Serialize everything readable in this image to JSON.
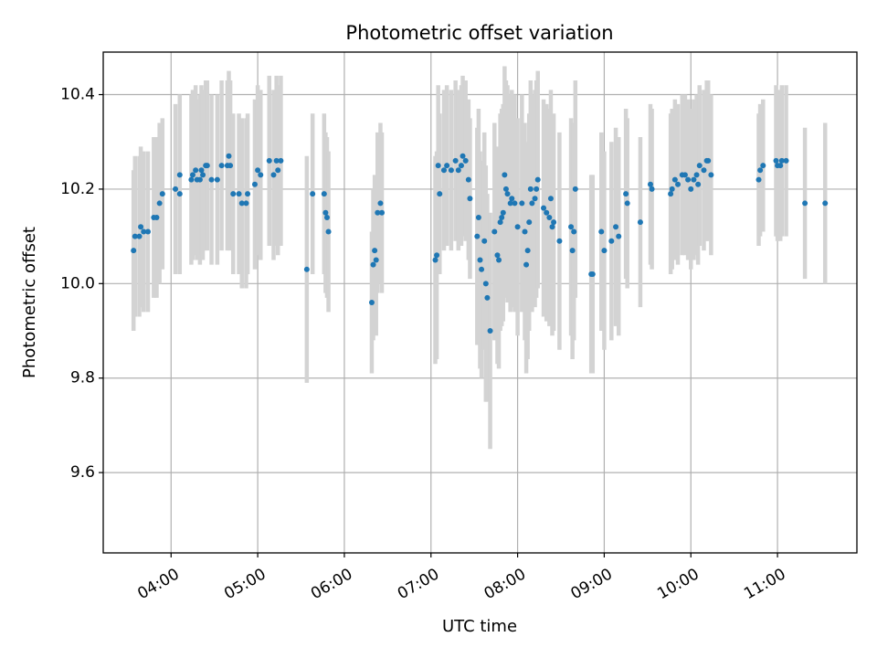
{
  "chart_data": {
    "type": "scatter",
    "title": "Photometric offset variation",
    "xlabel": "UTC time",
    "ylabel": "Photometric offset",
    "x_unit": "UTC hours",
    "xlim": [
      "03:13",
      "11:55"
    ],
    "ylim": [
      9.43,
      10.49
    ],
    "x_ticks": [
      "04:00",
      "05:00",
      "06:00",
      "07:00",
      "08:00",
      "09:00",
      "10:00",
      "11:00"
    ],
    "y_ticks": [
      "9.6",
      "9.8",
      "10.0",
      "10.2",
      "10.4"
    ],
    "grid": true,
    "colors": {
      "point": "#1f77b4",
      "errorbar": "#d3d3d3",
      "grid": "#b0b0b0",
      "axes": "#000000"
    },
    "series": [
      {
        "points": [
          [
            "03:34",
            10.07,
            0.17
          ],
          [
            "03:35",
            10.1,
            0.17
          ],
          [
            "03:38",
            10.1,
            0.17
          ],
          [
            "03:39",
            10.12,
            0.17
          ],
          [
            "03:41",
            10.11,
            0.17
          ],
          [
            "03:44",
            10.11,
            0.17
          ],
          [
            "03:48",
            10.14,
            0.17
          ],
          [
            "03:50",
            10.14,
            0.17
          ],
          [
            "03:52",
            10.17,
            0.17
          ],
          [
            "03:54",
            10.19,
            0.16
          ],
          [
            "04:03",
            10.2,
            0.18
          ],
          [
            "04:06",
            10.23,
            0.17
          ],
          [
            "04:06",
            10.19,
            0.17
          ],
          [
            "04:14",
            10.22,
            0.18
          ],
          [
            "04:15",
            10.23,
            0.18
          ],
          [
            "04:17",
            10.24,
            0.18
          ],
          [
            "04:18",
            10.22,
            0.17
          ],
          [
            "04:20",
            10.22,
            0.18
          ],
          [
            "04:21",
            10.24,
            0.18
          ],
          [
            "04:22",
            10.23,
            0.18
          ],
          [
            "04:24",
            10.25,
            0.18
          ],
          [
            "04:25",
            10.25,
            0.18
          ],
          [
            "04:28",
            10.22,
            0.18
          ],
          [
            "04:32",
            10.22,
            0.18
          ],
          [
            "04:35",
            10.25,
            0.18
          ],
          [
            "04:39",
            10.25,
            0.18
          ],
          [
            "04:40",
            10.27,
            0.18
          ],
          [
            "04:41",
            10.25,
            0.18
          ],
          [
            "04:43",
            10.19,
            0.17
          ],
          [
            "04:47",
            10.19,
            0.17
          ],
          [
            "04:49",
            10.17,
            0.18
          ],
          [
            "04:52",
            10.17,
            0.18
          ],
          [
            "04:53",
            10.19,
            0.17
          ],
          [
            "04:58",
            10.21,
            0.18
          ],
          [
            "05:00",
            10.24,
            0.18
          ],
          [
            "05:02",
            10.23,
            0.18
          ],
          [
            "05:08",
            10.26,
            0.18
          ],
          [
            "05:11",
            10.23,
            0.18
          ],
          [
            "05:13",
            10.26,
            0.18
          ],
          [
            "05:14",
            10.24,
            0.18
          ],
          [
            "05:16",
            10.26,
            0.18
          ],
          [
            "05:38",
            10.19,
            0.17
          ],
          [
            "05:34",
            10.03,
            0.24
          ],
          [
            "05:46",
            10.19,
            0.17
          ],
          [
            "05:47",
            10.15,
            0.17
          ],
          [
            "05:48",
            10.14,
            0.17
          ],
          [
            "05:49",
            10.11,
            0.17
          ],
          [
            "06:19",
            9.96,
            0.15
          ],
          [
            "06:20",
            10.04,
            0.16
          ],
          [
            "06:21",
            10.07,
            0.16
          ],
          [
            "06:22",
            10.05,
            0.16
          ],
          [
            "06:23",
            10.15,
            0.17
          ],
          [
            "06:25",
            10.17,
            0.17
          ],
          [
            "06:26",
            10.15,
            0.17
          ],
          [
            "07:03",
            10.05,
            0.22
          ],
          [
            "07:04",
            10.06,
            0.22
          ],
          [
            "07:05",
            10.25,
            0.17
          ],
          [
            "07:06",
            10.19,
            0.17
          ],
          [
            "07:09",
            10.24,
            0.17
          ],
          [
            "07:11",
            10.25,
            0.17
          ],
          [
            "07:14",
            10.24,
            0.17
          ],
          [
            "07:17",
            10.26,
            0.17
          ],
          [
            "07:19",
            10.24,
            0.17
          ],
          [
            "07:21",
            10.25,
            0.17
          ],
          [
            "07:22",
            10.27,
            0.17
          ],
          [
            "07:24",
            10.26,
            0.17
          ],
          [
            "07:26",
            10.22,
            0.17
          ],
          [
            "07:27",
            10.18,
            0.17
          ],
          [
            "07:32",
            10.1,
            0.23
          ],
          [
            "07:33",
            10.14,
            0.23
          ],
          [
            "07:34",
            10.05,
            0.23
          ],
          [
            "07:35",
            10.03,
            0.23
          ],
          [
            "07:37",
            10.09,
            0.23
          ],
          [
            "07:38",
            10.0,
            0.25
          ],
          [
            "07:39",
            9.97,
            0.22
          ],
          [
            "07:41",
            9.9,
            0.25
          ],
          [
            "07:44",
            10.11,
            0.23
          ],
          [
            "07:46",
            10.06,
            0.23
          ],
          [
            "07:47",
            10.05,
            0.23
          ],
          [
            "07:48",
            10.13,
            0.23
          ],
          [
            "07:49",
            10.14,
            0.23
          ],
          [
            "07:50",
            10.15,
            0.23
          ],
          [
            "07:51",
            10.23,
            0.23
          ],
          [
            "07:52",
            10.2,
            0.23
          ],
          [
            "07:53",
            10.19,
            0.23
          ],
          [
            "07:55",
            10.17,
            0.23
          ],
          [
            "07:56",
            10.18,
            0.23
          ],
          [
            "07:58",
            10.17,
            0.23
          ],
          [
            "08:00",
            10.12,
            0.23
          ],
          [
            "08:03",
            10.17,
            0.23
          ],
          [
            "08:05",
            10.11,
            0.23
          ],
          [
            "08:06",
            10.04,
            0.23
          ],
          [
            "08:07",
            10.07,
            0.23
          ],
          [
            "08:08",
            10.13,
            0.23
          ],
          [
            "08:09",
            10.2,
            0.23
          ],
          [
            "08:10",
            10.17,
            0.23
          ],
          [
            "08:12",
            10.18,
            0.23
          ],
          [
            "08:13",
            10.2,
            0.23
          ],
          [
            "08:14",
            10.22,
            0.23
          ],
          [
            "08:18",
            10.16,
            0.23
          ],
          [
            "08:20",
            10.15,
            0.23
          ],
          [
            "08:22",
            10.14,
            0.23
          ],
          [
            "08:23",
            10.18,
            0.23
          ],
          [
            "08:24",
            10.12,
            0.23
          ],
          [
            "08:25",
            10.13,
            0.23
          ],
          [
            "08:29",
            10.09,
            0.23
          ],
          [
            "08:37",
            10.12,
            0.23
          ],
          [
            "08:38",
            10.07,
            0.23
          ],
          [
            "08:39",
            10.11,
            0.23
          ],
          [
            "08:40",
            10.2,
            0.23
          ],
          [
            "08:51",
            10.02,
            0.21
          ],
          [
            "08:52",
            10.02,
            0.21
          ],
          [
            "08:58",
            10.11,
            0.21
          ],
          [
            "09:00",
            10.07,
            0.21
          ],
          [
            "09:05",
            10.09,
            0.21
          ],
          [
            "09:08",
            10.12,
            0.21
          ],
          [
            "09:10",
            10.1,
            0.21
          ],
          [
            "09:15",
            10.19,
            0.18
          ],
          [
            "09:16",
            10.17,
            0.18
          ],
          [
            "09:25",
            10.13,
            0.18
          ],
          [
            "09:32",
            10.21,
            0.17
          ],
          [
            "09:33",
            10.2,
            0.17
          ],
          [
            "09:46",
            10.19,
            0.17
          ],
          [
            "09:47",
            10.2,
            0.17
          ],
          [
            "09:49",
            10.22,
            0.17
          ],
          [
            "09:51",
            10.21,
            0.17
          ],
          [
            "09:54",
            10.23,
            0.17
          ],
          [
            "09:56",
            10.23,
            0.17
          ],
          [
            "09:58",
            10.22,
            0.17
          ],
          [
            "10:00",
            10.2,
            0.17
          ],
          [
            "10:02",
            10.22,
            0.17
          ],
          [
            "10:04",
            10.23,
            0.17
          ],
          [
            "10:05",
            10.21,
            0.17
          ],
          [
            "10:06",
            10.25,
            0.17
          ],
          [
            "10:09",
            10.24,
            0.17
          ],
          [
            "10:11",
            10.26,
            0.17
          ],
          [
            "10:12",
            10.26,
            0.17
          ],
          [
            "10:14",
            10.23,
            0.17
          ],
          [
            "10:47",
            10.22,
            0.14
          ],
          [
            "10:48",
            10.24,
            0.14
          ],
          [
            "10:50",
            10.25,
            0.14
          ],
          [
            "10:59",
            10.26,
            0.16
          ],
          [
            "11:00",
            10.25,
            0.16
          ],
          [
            "11:02",
            10.25,
            0.16
          ],
          [
            "11:03",
            10.26,
            0.16
          ],
          [
            "11:06",
            10.26,
            0.16
          ],
          [
            "11:19",
            10.17,
            0.16
          ],
          [
            "11:33",
            10.17,
            0.17
          ]
        ]
      }
    ]
  }
}
